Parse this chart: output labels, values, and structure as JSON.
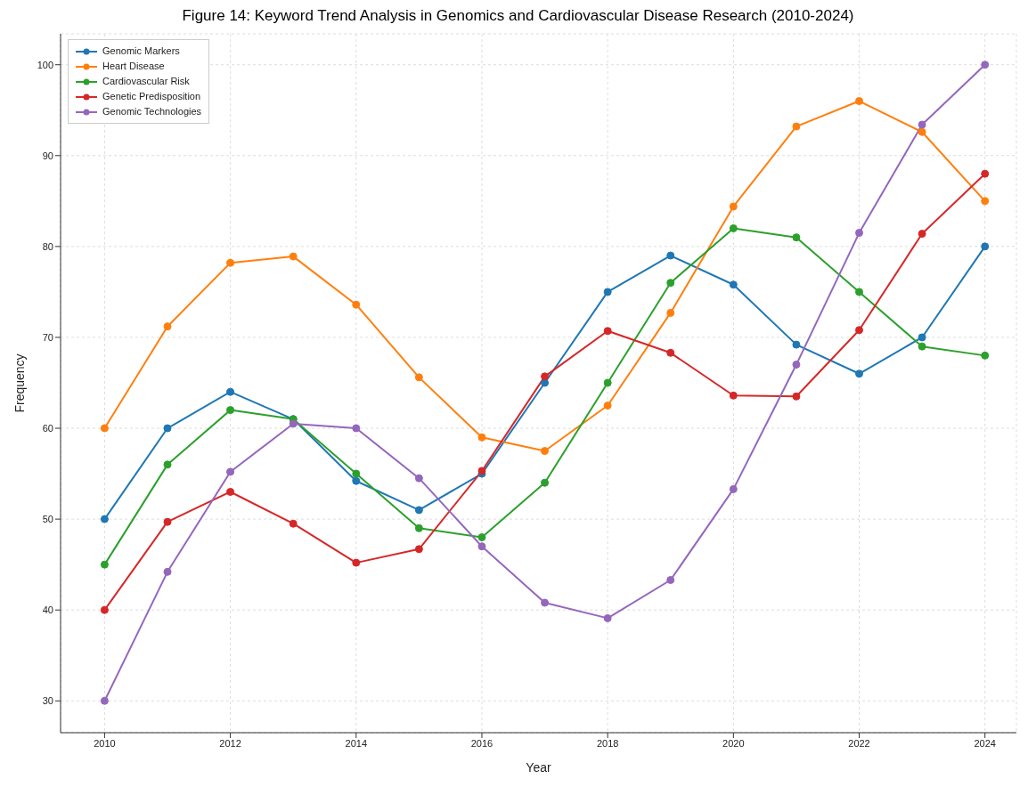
{
  "chart_data": {
    "type": "line",
    "title": "Figure 14: Keyword Trend Analysis in Genomics and Cardiovascular Disease Research (2010-2024)",
    "xlabel": "Year",
    "ylabel": "Frequency",
    "x": [
      2010,
      2011,
      2012,
      2013,
      2014,
      2015,
      2016,
      2017,
      2018,
      2019,
      2020,
      2021,
      2022,
      2023,
      2024
    ],
    "series": [
      {
        "name": "Genomic Markers",
        "color": "#1f77b4",
        "values": [
          50,
          60,
          64,
          61,
          54.2,
          51,
          55,
          65,
          75,
          79,
          75.8,
          69.2,
          66,
          70,
          80
        ]
      },
      {
        "name": "Heart Disease",
        "color": "#ff7f0e",
        "values": [
          60,
          71.2,
          78.2,
          78.9,
          73.6,
          65.6,
          59,
          57.5,
          62.5,
          72.7,
          84.4,
          93.2,
          96,
          92.6,
          85
        ]
      },
      {
        "name": "Cardiovascular Risk",
        "color": "#2ca02c",
        "values": [
          45,
          56,
          62,
          61,
          55,
          49,
          48,
          54,
          65,
          76,
          82,
          81,
          75,
          69,
          68
        ]
      },
      {
        "name": "Genetic Predisposition",
        "color": "#d62728",
        "values": [
          40,
          49.7,
          53,
          49.5,
          45.2,
          46.7,
          55.3,
          65.7,
          70.7,
          68.3,
          63.6,
          63.5,
          70.8,
          81.4,
          88
        ]
      },
      {
        "name": "Genomic Technologies",
        "color": "#9467bd",
        "values": [
          30,
          44.2,
          55.2,
          60.5,
          60,
          54.5,
          47,
          40.8,
          39.1,
          43.3,
          53.3,
          67,
          81.5,
          93.4,
          100
        ]
      }
    ],
    "xlim": [
      2009.3,
      2024.5
    ],
    "xticks": [
      2010,
      2012,
      2014,
      2016,
      2018,
      2020,
      2022,
      2024
    ],
    "ylim": [
      26.5,
      103.4
    ],
    "yticks": [
      30,
      40,
      50,
      60,
      70,
      80,
      90,
      100
    ],
    "grid": true,
    "legend": "top left",
    "marker": "circle",
    "line_style": "solid"
  }
}
